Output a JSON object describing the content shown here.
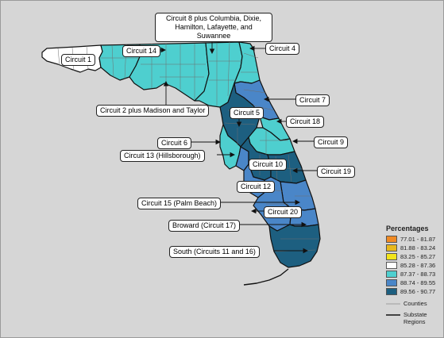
{
  "callouts": {
    "circuit1": "Circuit 1",
    "circuit14": "Circuit 14",
    "circuit8": "Circuit 8 plus Columbia, Dixie, Hamilton, Lafayette, and Suwannee",
    "circuit4": "Circuit 4",
    "circuit2": "Circuit 2 plus Madison and Taylor",
    "circuit7": "Circuit 7",
    "circuit5": "Circuit 5",
    "circuit18": "Circuit 18",
    "circuit6": "Circuit 6",
    "circuit9": "Circuit 9",
    "circuit13": "Circuit 13 (Hillsborough)",
    "circuit10": "Circuit 10",
    "circuit19": "Circuit 19",
    "circuit12": "Circuit 12",
    "circuit15": "Circuit 15 (Palm Beach)",
    "circuit20": "Circuit 20",
    "circuit17": "Broward (Circuit 17)",
    "south": "South (Circuits 11 and 16)"
  },
  "legend": {
    "title": "Percentages",
    "ranges": [
      {
        "label": "77.01 - 81.87",
        "color": "#f08a24"
      },
      {
        "label": "81.88 - 83.24",
        "color": "#e8b81c"
      },
      {
        "label": "83.25 - 85.27",
        "color": "#f2e41a"
      },
      {
        "label": "85.28 - 87.36",
        "color": "#ffffff"
      },
      {
        "label": "87.37 - 88.73",
        "color": "#4ecfcf"
      },
      {
        "label": "88.74 - 89.55",
        "color": "#4a86c8"
      },
      {
        "label": "89.56 - 90.77",
        "color": "#1d5f80"
      }
    ],
    "counties_label": "Counties",
    "substate_label": "Substate Regions"
  },
  "colors": {
    "background": "#d6d6d6",
    "outline": "#111111",
    "county_line": "#8a8a8a"
  }
}
